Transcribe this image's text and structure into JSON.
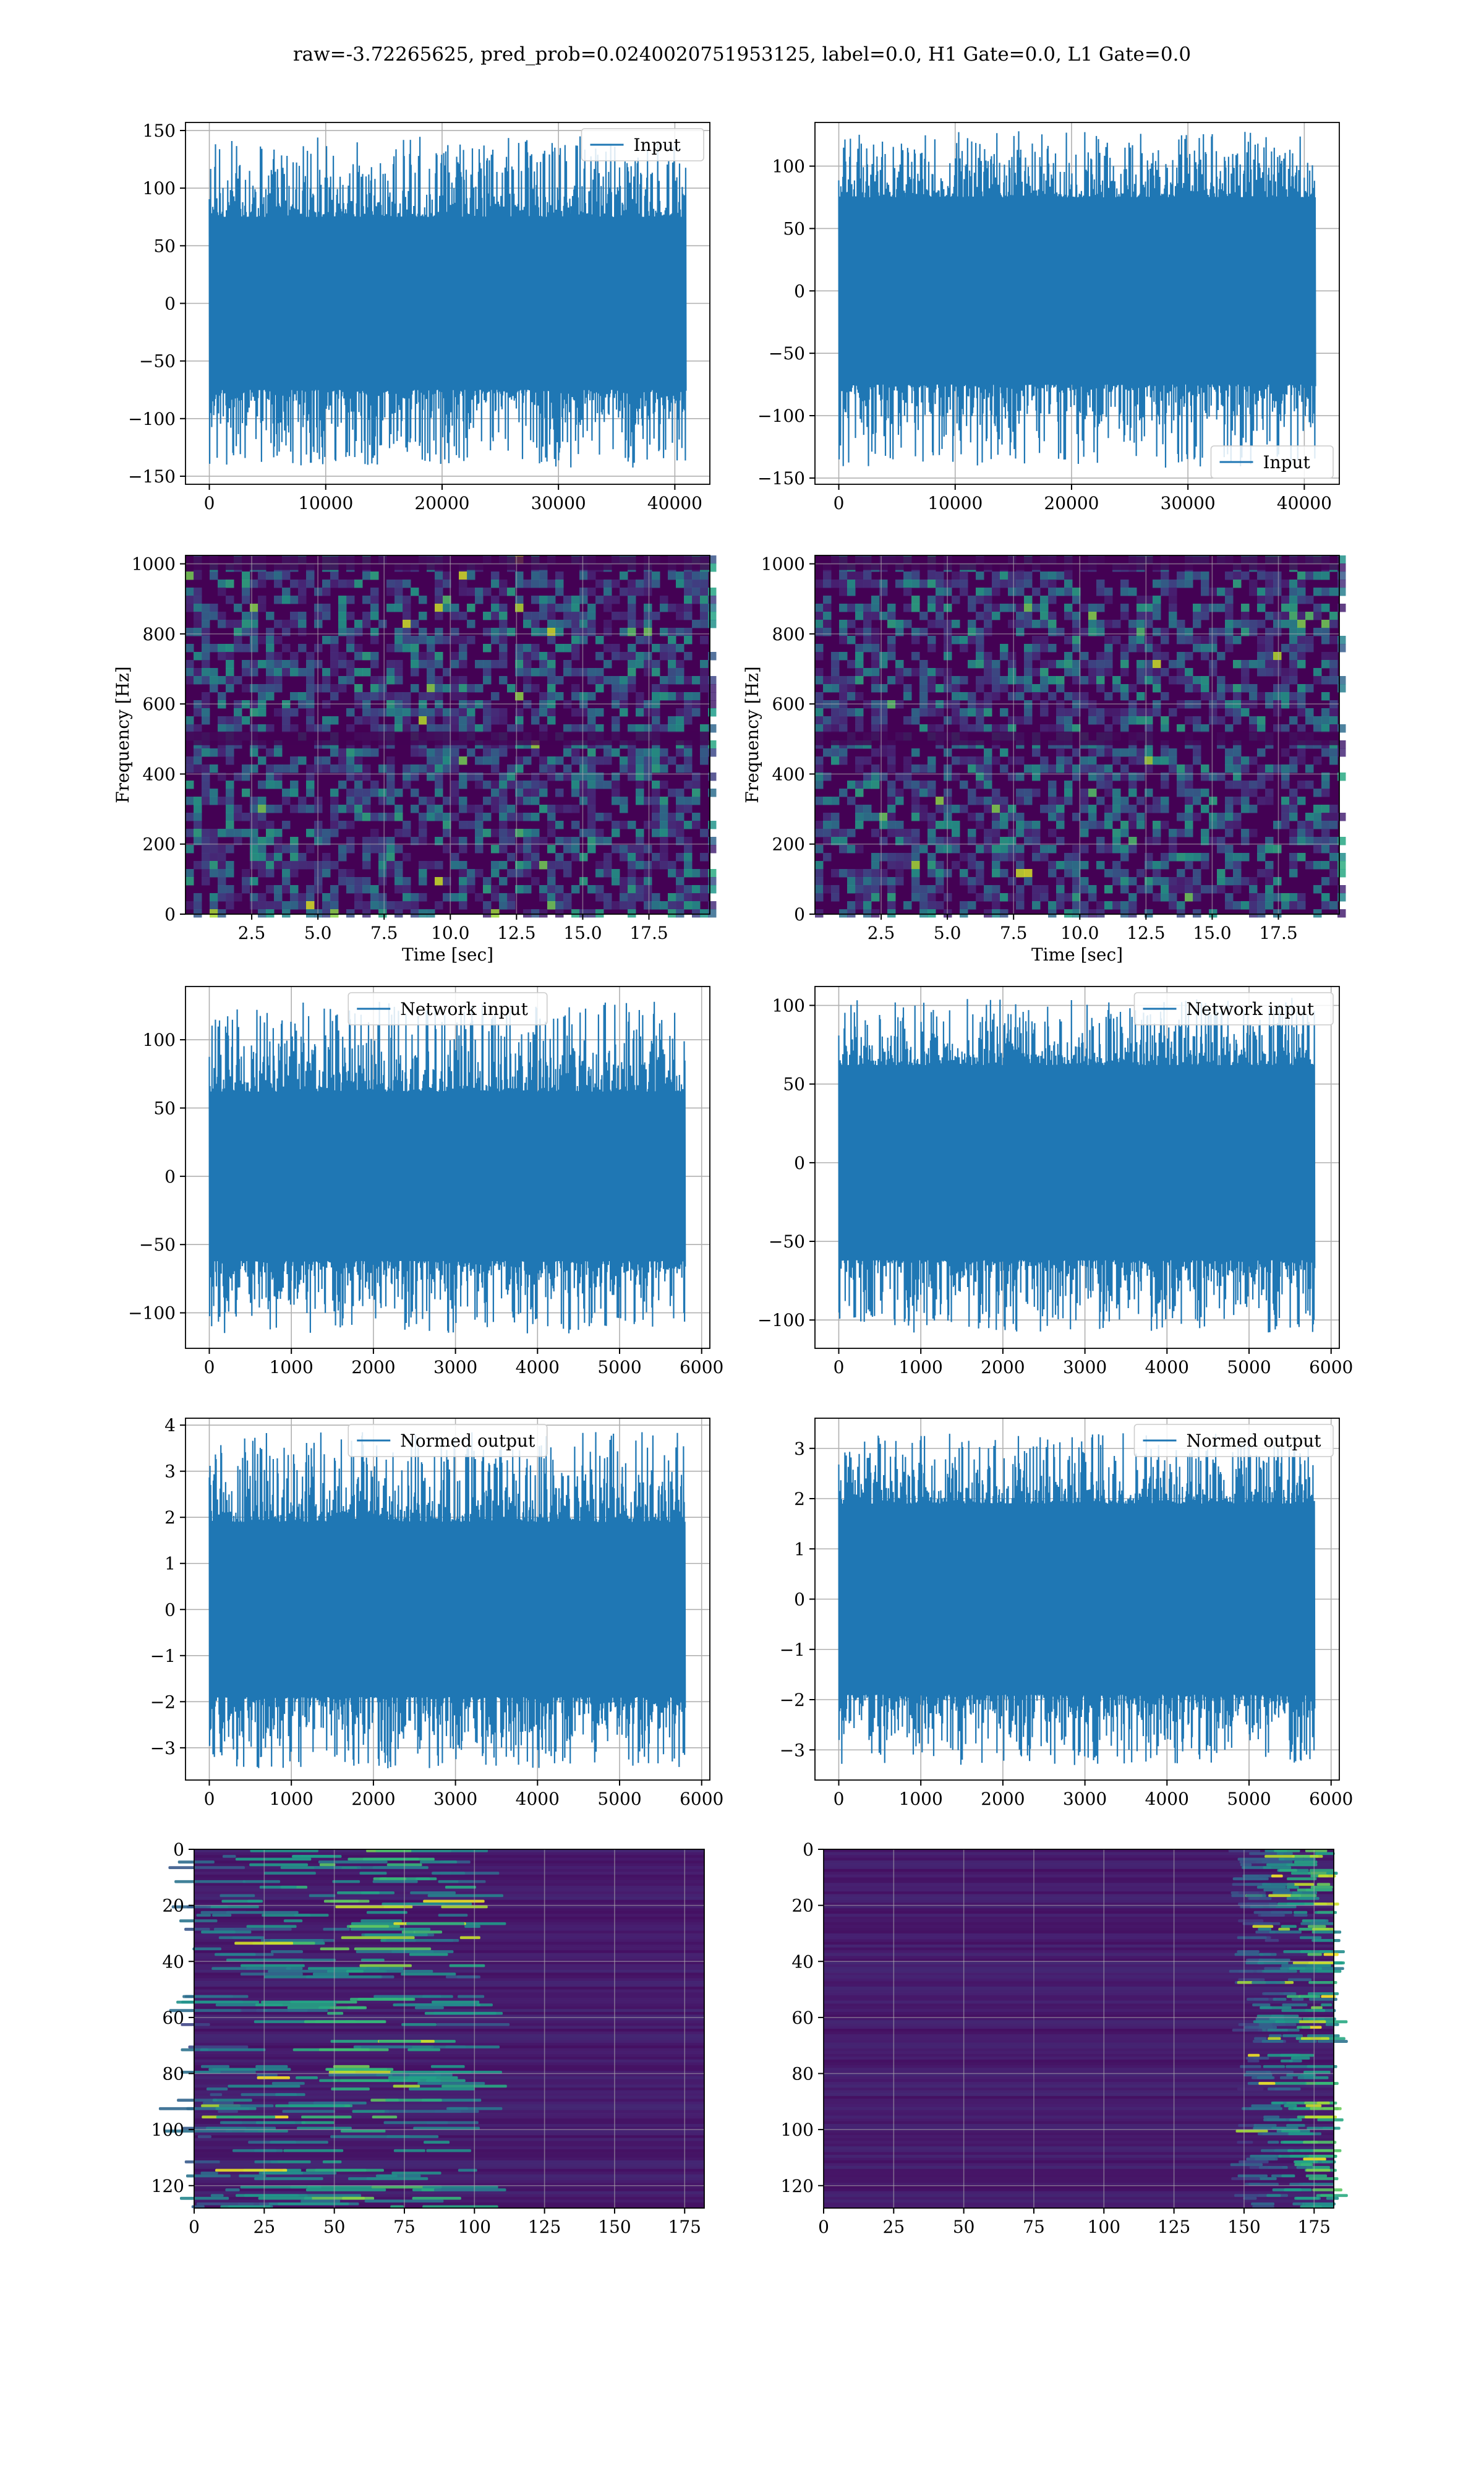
{
  "figure": {
    "suptitle": "raw=-3.72265625, pred_prob=0.0240020751953125, label=0.0, H1 Gate=0.0, L1 Gate=0.0"
  },
  "colors": {
    "line": "#1f77b4",
    "viridis_low": "#440154",
    "viridis_mid": "#21918c",
    "viridis_high": "#fde725",
    "grid": "#b0b0b0"
  },
  "chart_data": [
    {
      "id": "r1l",
      "type": "line",
      "legend_label": "Input",
      "legend_loc": "upper-right",
      "xlim": [
        -2048,
        43008
      ],
      "ylim": [
        -157,
        157
      ],
      "xticks": [
        0,
        10000,
        20000,
        30000,
        40000
      ],
      "xtick_labels": [
        "0",
        "10000",
        "20000",
        "30000",
        "40000"
      ],
      "yticks": [
        -150,
        -100,
        -50,
        0,
        50,
        100,
        150
      ],
      "ytick_labels": [
        "−150",
        "−100",
        "−50",
        "0",
        "50",
        "100",
        "150"
      ],
      "series": [
        {
          "x_range": [
            0,
            40960
          ],
          "samples": 40960,
          "envelope_max": 145,
          "envelope_min": -143,
          "core_amplitude": 75
        }
      ]
    },
    {
      "id": "r1r",
      "type": "line",
      "legend_label": "Input",
      "legend_loc": "lower-right",
      "xlim": [
        -2048,
        43008
      ],
      "ylim": [
        -155,
        135
      ],
      "xticks": [
        0,
        10000,
        20000,
        30000,
        40000
      ],
      "xtick_labels": [
        "0",
        "10000",
        "20000",
        "30000",
        "40000"
      ],
      "yticks": [
        -150,
        -100,
        -50,
        0,
        50,
        100
      ],
      "ytick_labels": [
        "−150",
        "−100",
        "−50",
        "0",
        "50",
        "100"
      ],
      "series": [
        {
          "x_range": [
            0,
            40960
          ],
          "samples": 40960,
          "envelope_max": 128,
          "envelope_min": -142,
          "core_amplitude": 75
        }
      ]
    },
    {
      "id": "r2l",
      "type": "heatmap",
      "xlabel": "Time [sec]",
      "ylabel": "Frequency [Hz]",
      "xlim": [
        0,
        19.8
      ],
      "ylim": [
        0,
        1024
      ],
      "xticks": [
        2.5,
        5.0,
        7.5,
        10.0,
        12.5,
        15.0,
        17.5
      ],
      "xtick_labels": [
        "2.5",
        "5.0",
        "7.5",
        "10.0",
        "12.5",
        "15.0",
        "17.5"
      ],
      "yticks": [
        0,
        200,
        400,
        600,
        800,
        1000
      ],
      "ytick_labels": [
        "0",
        "200",
        "400",
        "600",
        "800",
        "1000"
      ],
      "colormap": "viridis",
      "dark_bands_hz": [
        500,
        1000
      ],
      "grid": true
    },
    {
      "id": "r2r",
      "type": "heatmap",
      "xlabel": "Time [sec]",
      "ylabel": "Frequency [Hz]",
      "xlim": [
        0,
        19.8
      ],
      "ylim": [
        0,
        1024
      ],
      "xticks": [
        2.5,
        5.0,
        7.5,
        10.0,
        12.5,
        15.0,
        17.5
      ],
      "xtick_labels": [
        "2.5",
        "5.0",
        "7.5",
        "10.0",
        "12.5",
        "15.0",
        "17.5"
      ],
      "yticks": [
        0,
        200,
        400,
        600,
        800,
        1000
      ],
      "ytick_labels": [
        "0",
        "200",
        "400",
        "600",
        "800",
        "1000"
      ],
      "colormap": "viridis",
      "dark_bands_hz": [
        500,
        1000
      ],
      "grid": true
    },
    {
      "id": "r3l",
      "type": "line",
      "legend_label": "Network input",
      "legend_loc": "upper-center",
      "xlim": [
        -290,
        6100
      ],
      "ylim": [
        -126,
        139
      ],
      "xticks": [
        0,
        1000,
        2000,
        3000,
        4000,
        5000,
        6000
      ],
      "xtick_labels": [
        "0",
        "1000",
        "2000",
        "3000",
        "4000",
        "5000",
        "6000"
      ],
      "yticks": [
        -100,
        -50,
        0,
        50,
        100
      ],
      "ytick_labels": [
        "−100",
        "−50",
        "0",
        "50",
        "100"
      ],
      "series": [
        {
          "x_range": [
            0,
            5800
          ],
          "samples": 5800,
          "envelope_max": 128,
          "envelope_min": -115,
          "core_amplitude": 62
        }
      ]
    },
    {
      "id": "r3r",
      "type": "line",
      "legend_label": "Network input",
      "legend_loc": "upper-right",
      "xlim": [
        -290,
        6100
      ],
      "ylim": [
        -118,
        112
      ],
      "xticks": [
        0,
        1000,
        2000,
        3000,
        4000,
        5000,
        6000
      ],
      "xtick_labels": [
        "0",
        "1000",
        "2000",
        "3000",
        "4000",
        "5000",
        "6000"
      ],
      "yticks": [
        -100,
        -50,
        0,
        50,
        100
      ],
      "ytick_labels": [
        "−100",
        "−50",
        "0",
        "50",
        "100"
      ],
      "series": [
        {
          "x_range": [
            0,
            5800
          ],
          "samples": 5800,
          "envelope_max": 105,
          "envelope_min": -108,
          "core_amplitude": 62
        }
      ]
    },
    {
      "id": "r4l",
      "type": "line",
      "legend_label": "Normed output",
      "legend_loc": "upper-center",
      "xlim": [
        -290,
        6100
      ],
      "ylim": [
        -3.7,
        4.15
      ],
      "xticks": [
        0,
        1000,
        2000,
        3000,
        4000,
        5000,
        6000
      ],
      "xtick_labels": [
        "0",
        "1000",
        "2000",
        "3000",
        "4000",
        "5000",
        "6000"
      ],
      "yticks": [
        -3,
        -2,
        -1,
        0,
        1,
        2,
        3,
        4
      ],
      "ytick_labels": [
        "−3",
        "−2",
        "−1",
        "0",
        "1",
        "2",
        "3",
        "4"
      ],
      "series": [
        {
          "x_range": [
            0,
            5800
          ],
          "samples": 5800,
          "envelope_max": 3.85,
          "envelope_min": -3.45,
          "core_amplitude": 1.9
        }
      ]
    },
    {
      "id": "r4r",
      "type": "line",
      "legend_label": "Normed output",
      "legend_loc": "upper-right",
      "xlim": [
        -290,
        6100
      ],
      "ylim": [
        -3.6,
        3.6
      ],
      "xticks": [
        0,
        1000,
        2000,
        3000,
        4000,
        5000,
        6000
      ],
      "xtick_labels": [
        "0",
        "1000",
        "2000",
        "3000",
        "4000",
        "5000",
        "6000"
      ],
      "yticks": [
        -3,
        -2,
        -1,
        0,
        1,
        2,
        3
      ],
      "ytick_labels": [
        "−3",
        "−2",
        "−1",
        "0",
        "1",
        "2",
        "3"
      ],
      "series": [
        {
          "x_range": [
            0,
            5800
          ],
          "samples": 5800,
          "envelope_max": 3.3,
          "envelope_min": -3.3,
          "core_amplitude": 1.9
        }
      ]
    },
    {
      "id": "r5l",
      "type": "heatmap",
      "colormap": "viridis",
      "xlim": [
        0,
        182
      ],
      "ylim": [
        128,
        0
      ],
      "xticks": [
        0,
        25,
        50,
        75,
        100,
        125,
        150,
        175
      ],
      "xtick_labels": [
        "0",
        "25",
        "50",
        "75",
        "100",
        "125",
        "150",
        "175"
      ],
      "yticks": [
        0,
        20,
        40,
        60,
        80,
        100,
        120
      ],
      "ytick_labels": [
        "0",
        "20",
        "40",
        "60",
        "80",
        "100",
        "120"
      ],
      "activation_x_range": [
        0,
        100
      ],
      "activation_peak_x": 60,
      "rows": 128,
      "cols": 182
    },
    {
      "id": "r5r",
      "type": "heatmap",
      "colormap": "viridis",
      "xlim": [
        0,
        182
      ],
      "ylim": [
        128,
        0
      ],
      "xticks": [
        0,
        25,
        50,
        75,
        100,
        125,
        150,
        175
      ],
      "xtick_labels": [
        "0",
        "25",
        "50",
        "75",
        "100",
        "125",
        "150",
        "175"
      ],
      "yticks": [
        0,
        20,
        40,
        60,
        80,
        100,
        120
      ],
      "ytick_labels": [
        "0",
        "20",
        "40",
        "60",
        "80",
        "100",
        "120"
      ],
      "activation_x_range": [
        150,
        182
      ],
      "activation_peak_x": 177,
      "rows": 128,
      "cols": 182
    }
  ]
}
